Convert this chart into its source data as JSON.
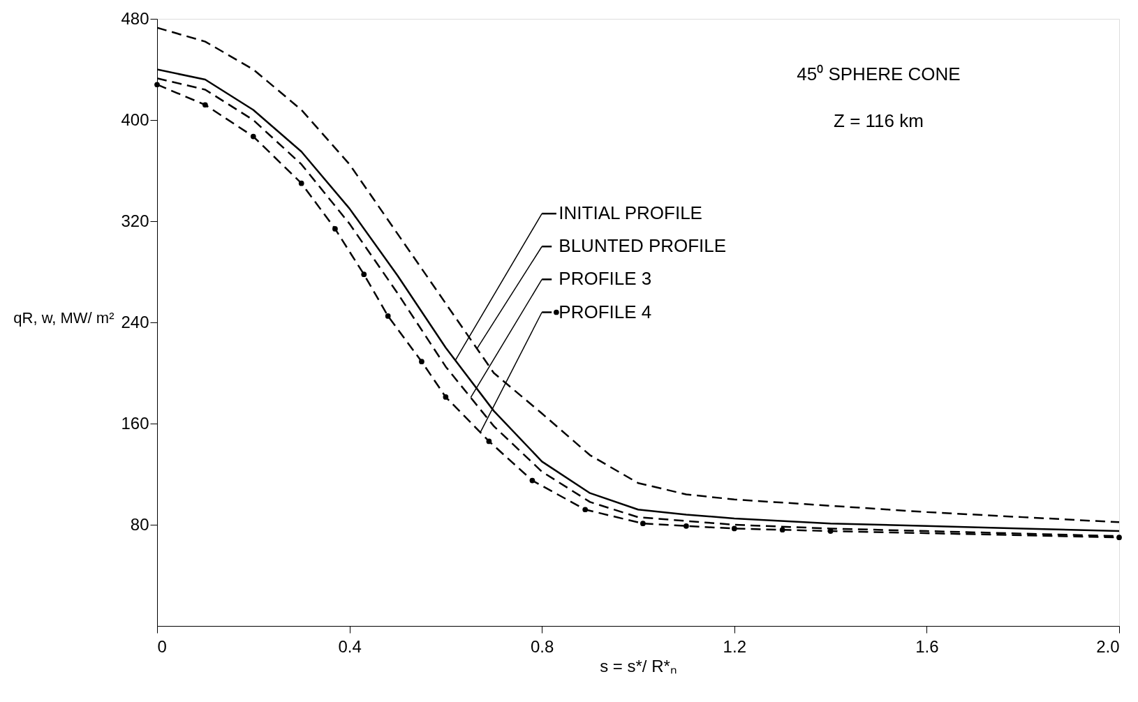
{
  "chart_data": {
    "type": "line",
    "xlabel": "s = s*/ R*ₙ",
    "ylabel": "qR, w, MW/ m²",
    "annotations": [
      "45⁰ SPHERE CONE",
      "Z = 116 km"
    ],
    "xlim": [
      0,
      2.0
    ],
    "ylim": [
      0,
      480
    ],
    "xticks": [
      0,
      0.4,
      0.8,
      1.2,
      1.6,
      {
        "value": 2,
        "label": "2.0"
      }
    ],
    "yticks": [
      80,
      160,
      240,
      320,
      400,
      480
    ],
    "grid": false,
    "legend": "right",
    "series": [
      {
        "name": "INITIAL PROFILE",
        "color": "#000000",
        "line_style": "solid",
        "marker": "none",
        "x": [
          0,
          0.1,
          0.2,
          0.3,
          0.4,
          0.5,
          0.6,
          0.7,
          0.8,
          0.9,
          1.0,
          1.1,
          1.2,
          1.4,
          1.6,
          1.8,
          2.0
        ],
        "values": [
          440,
          432,
          408,
          375,
          330,
          277,
          220,
          170,
          130,
          105,
          92,
          88,
          85,
          81,
          79,
          77,
          75
        ]
      },
      {
        "name": "BLUNTED PROFILE",
        "color": "#000000",
        "line_style": "dashed",
        "marker": "none",
        "x": [
          0,
          0.1,
          0.2,
          0.3,
          0.4,
          0.5,
          0.6,
          0.7,
          0.8,
          0.9,
          1.0,
          1.1,
          1.2,
          1.4,
          1.6,
          1.8,
          2.0
        ],
        "values": [
          473,
          462,
          440,
          408,
          365,
          310,
          255,
          200,
          168,
          135,
          113,
          104,
          100,
          95,
          90,
          86,
          82
        ]
      },
      {
        "name": "PROFILE 3",
        "color": "#000000",
        "line_style": "dashed",
        "marker": "none",
        "x": [
          0,
          0.1,
          0.2,
          0.3,
          0.4,
          0.5,
          0.6,
          0.7,
          0.8,
          0.9,
          1.0,
          1.1,
          1.2,
          1.4,
          1.6,
          1.8,
          2.0
        ],
        "values": [
          433,
          424,
          400,
          365,
          318,
          263,
          205,
          158,
          122,
          98,
          86,
          83,
          80,
          77,
          75,
          73,
          71
        ]
      },
      {
        "name": "PROFILE 4",
        "color": "#000000",
        "line_style": "dashed",
        "marker": "circle",
        "x": [
          0,
          0.1,
          0.2,
          0.3,
          0.37,
          0.43,
          0.48,
          0.55,
          0.6,
          0.69,
          0.78,
          0.89,
          1.01,
          1.1,
          1.2,
          1.3,
          1.4,
          2.0
        ],
        "values": [
          428,
          412,
          387,
          350,
          314,
          278,
          245,
          209,
          181,
          146,
          115,
          92,
          81,
          79,
          77,
          76,
          75,
          70
        ]
      }
    ]
  }
}
